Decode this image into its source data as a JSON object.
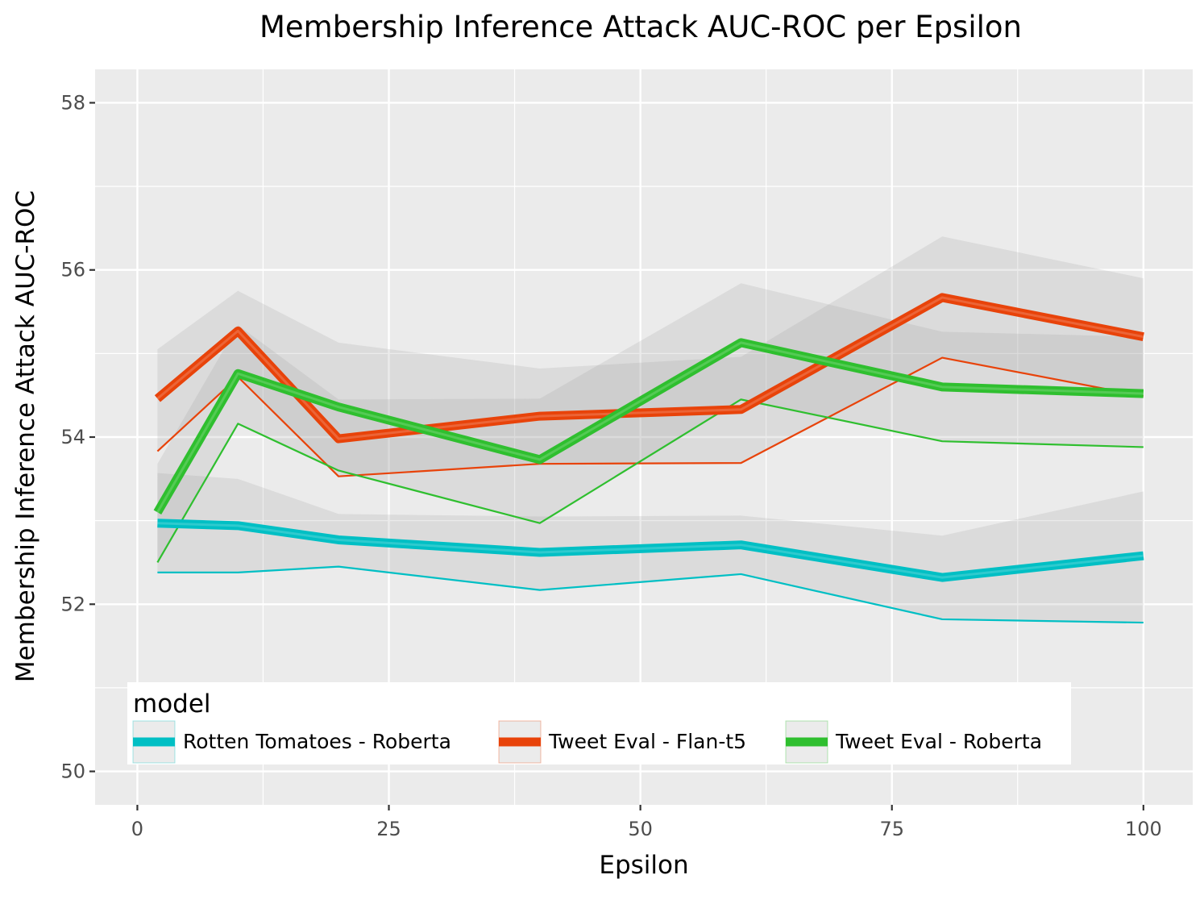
{
  "chart_data": {
    "type": "line",
    "title": "Membership Inference Attack AUC-ROC per Epsilon",
    "xlabel": "Epsilon",
    "ylabel": "Membership Inference Attack AUC-ROC",
    "xlim": [
      -4.2,
      104.9
    ],
    "ylim": [
      49.6,
      58.4
    ],
    "x_ticks": [
      0,
      25,
      50,
      75,
      100
    ],
    "y_ticks": [
      50,
      52,
      54,
      56,
      58
    ],
    "grid": true,
    "background": "#ebebeb",
    "legend": {
      "title": "model",
      "position": "bottom-left-inside"
    },
    "x": [
      2,
      10,
      20,
      40,
      60,
      80,
      100
    ],
    "series": [
      {
        "name": "Rotten Tomatoes - Roberta",
        "color": "#00bfc4",
        "mean": [
          52.97,
          52.94,
          52.77,
          52.62,
          52.71,
          52.32,
          52.58
        ],
        "min": [
          52.38,
          52.38,
          52.45,
          52.17,
          52.36,
          51.82,
          51.78
        ],
        "band_low": [
          52.38,
          52.38,
          52.45,
          52.17,
          52.36,
          51.82,
          51.78
        ],
        "band_high": [
          53.57,
          53.5,
          53.08,
          53.05,
          53.06,
          52.82,
          53.35
        ]
      },
      {
        "name": "Tweet Eval - Flan-t5",
        "color": "#e8430a",
        "mean": [
          54.46,
          55.27,
          53.98,
          54.25,
          54.33,
          55.67,
          55.2
        ],
        "min": [
          53.83,
          54.72,
          53.53,
          53.68,
          53.69,
          54.95,
          54.49
        ],
        "band_low": [
          53.83,
          54.72,
          53.53,
          53.68,
          53.69,
          54.95,
          54.49
        ],
        "band_high": [
          55.05,
          55.75,
          55.13,
          54.82,
          54.96,
          56.4,
          55.9
        ]
      },
      {
        "name": "Tweet Eval - Roberta",
        "color": "#2fbf2f",
        "mean": [
          53.1,
          54.76,
          54.36,
          53.73,
          55.13,
          54.6,
          54.52
        ],
        "min": [
          52.5,
          54.16,
          53.6,
          52.97,
          54.45,
          53.95,
          53.88
        ],
        "band_low": [
          52.5,
          54.16,
          53.6,
          52.97,
          54.45,
          53.95,
          53.88
        ],
        "band_high": [
          53.68,
          55.34,
          54.45,
          54.46,
          55.84,
          55.26,
          55.2
        ]
      }
    ]
  }
}
